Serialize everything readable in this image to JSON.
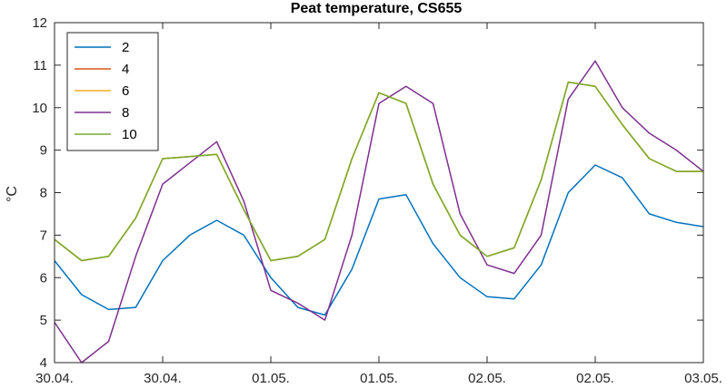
{
  "chart_data": {
    "type": "line",
    "title": "Peat temperature, CS655",
    "xlabel": "",
    "ylabel": "°C",
    "xlim": [
      0,
      6
    ],
    "ylim": [
      4,
      12
    ],
    "x_ticks": [
      0,
      1,
      2,
      3,
      4,
      5,
      6
    ],
    "x_tick_labels": [
      "30.04.",
      "30.04.",
      "01.05.",
      "01.05.",
      "02.05.",
      "02.05.",
      "03.05."
    ],
    "y_ticks": [
      4,
      5,
      6,
      7,
      8,
      9,
      10,
      11,
      12
    ],
    "legend_position": "top-left",
    "grid": false,
    "series": [
      {
        "name": "2",
        "color": "#0072bd",
        "x": [
          0,
          0.25,
          0.5,
          0.75,
          1.0,
          1.25,
          1.5,
          1.75,
          2.0,
          2.25,
          2.5,
          2.75,
          3.0,
          3.25,
          3.5,
          3.75,
          4.0,
          4.25,
          4.5,
          4.75,
          5.0,
          5.25,
          5.5,
          5.75,
          6.0
        ],
        "values": [
          6.4,
          5.6,
          5.25,
          5.3,
          6.4,
          7.0,
          7.35,
          7.0,
          6.0,
          5.3,
          5.12,
          6.2,
          7.85,
          7.95,
          6.8,
          6.0,
          5.55,
          5.5,
          6.3,
          8.0,
          8.65,
          8.35,
          7.5,
          7.3,
          7.2
        ]
      },
      {
        "name": "4",
        "color": "#d95319",
        "x": [
          0,
          0.25,
          0.5,
          0.75,
          1.0,
          1.25,
          1.5,
          1.75,
          2.0,
          2.25,
          2.5,
          2.75,
          3.0,
          3.25,
          3.5,
          3.75,
          4.0,
          4.25,
          4.5,
          4.75,
          5.0,
          5.25,
          5.5,
          5.75,
          6.0
        ],
        "values": [
          6.9,
          6.4,
          6.5,
          7.4,
          8.8,
          8.85,
          8.9,
          7.6,
          6.4,
          6.5,
          6.9,
          8.8,
          10.35,
          10.1,
          8.2,
          7.0,
          6.5,
          6.7,
          8.3,
          10.6,
          10.5,
          9.6,
          8.8,
          8.5,
          8.5
        ]
      },
      {
        "name": "6",
        "color": "#edb120",
        "x": [
          0,
          0.25,
          0.5,
          0.75,
          1.0,
          1.25,
          1.5,
          1.75,
          2.0,
          2.25,
          2.5,
          2.75,
          3.0,
          3.25,
          3.5,
          3.75,
          4.0,
          4.25,
          4.5,
          4.75,
          5.0,
          5.25,
          5.5,
          5.75,
          6.0
        ],
        "values": [
          6.9,
          6.4,
          6.5,
          7.4,
          8.8,
          8.85,
          8.9,
          7.6,
          6.4,
          6.5,
          6.9,
          8.8,
          10.35,
          10.1,
          8.2,
          7.0,
          6.5,
          6.7,
          8.3,
          10.6,
          10.5,
          9.6,
          8.8,
          8.5,
          8.5
        ]
      },
      {
        "name": "8",
        "color": "#7e2f8e",
        "x": [
          0,
          0.25,
          0.5,
          0.75,
          1.0,
          1.25,
          1.5,
          1.75,
          2.0,
          2.25,
          2.5,
          2.75,
          3.0,
          3.25,
          3.5,
          3.75,
          4.0,
          4.25,
          4.5,
          4.75,
          5.0,
          5.25,
          5.5,
          5.75,
          6.0
        ],
        "values": [
          4.95,
          4.0,
          4.5,
          6.5,
          8.2,
          8.7,
          9.2,
          7.8,
          5.7,
          5.4,
          5.0,
          7.0,
          10.1,
          10.5,
          10.1,
          7.5,
          6.3,
          6.1,
          7.0,
          10.2,
          11.1,
          10.0,
          9.4,
          9.0,
          8.5
        ]
      },
      {
        "name": "10",
        "color": "#77ac30",
        "x": [
          0,
          0.25,
          0.5,
          0.75,
          1.0,
          1.25,
          1.5,
          1.75,
          2.0,
          2.25,
          2.5,
          2.75,
          3.0,
          3.25,
          3.5,
          3.75,
          4.0,
          4.25,
          4.5,
          4.75,
          5.0,
          5.25,
          5.5,
          5.75,
          6.0
        ],
        "values": [
          6.9,
          6.4,
          6.5,
          7.4,
          8.8,
          8.85,
          8.9,
          7.6,
          6.4,
          6.5,
          6.9,
          8.8,
          10.35,
          10.1,
          8.2,
          7.0,
          6.5,
          6.7,
          8.3,
          10.6,
          10.5,
          9.6,
          8.8,
          8.5,
          8.5
        ]
      }
    ]
  }
}
